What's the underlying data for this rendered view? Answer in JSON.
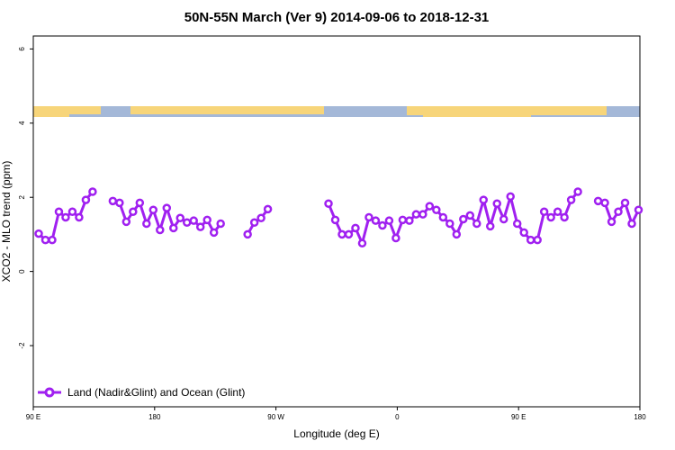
{
  "chart_data": {
    "type": "line",
    "title": "50N-55N March (Ver 9)   2014-09-06 to 2018-12-31",
    "xlabel": "Longitude (deg E)",
    "ylabel": "XCO2 - MLO trend (ppm)",
    "xlim": [
      90,
      540
    ],
    "ylim": [
      -3.65,
      6.35
    ],
    "xticks": [
      {
        "value": 90,
        "label": "90 E"
      },
      180,
      {
        "value": 270,
        "label": "90 W"
      },
      {
        "value": 360,
        "label": "0"
      },
      {
        "value": 450,
        "label": "90 E"
      },
      {
        "value": 540,
        "label": "180"
      }
    ],
    "yticks": [
      -2,
      0,
      2,
      4,
      6
    ],
    "legend": "bottom-left",
    "x": [
      94,
      99,
      104,
      109,
      114,
      119,
      124,
      129,
      134,
      139,
      144,
      149,
      154,
      159,
      164,
      169,
      174,
      179,
      184,
      189,
      194,
      199,
      204,
      209,
      214,
      219,
      224,
      229,
      234,
      239,
      244,
      249,
      254,
      259,
      264,
      269,
      274,
      279,
      284,
      289,
      294,
      299,
      304,
      309,
      314,
      319,
      324,
      329,
      334,
      339,
      344,
      349,
      354,
      359,
      364,
      369,
      374,
      379,
      384,
      389,
      394,
      399,
      404,
      409,
      414,
      419,
      424,
      429,
      434,
      439,
      444,
      449,
      454,
      459,
      464,
      469,
      474,
      479,
      484,
      489,
      494,
      499,
      504,
      509,
      514,
      519,
      524,
      529,
      534,
      539
    ],
    "series": [
      {
        "name": "Land (Nadir&Glint) and Ocean (Glint)",
        "color": "#a020f0",
        "values": [
          1.02,
          0.85,
          0.85,
          1.61,
          1.46,
          1.61,
          1.46,
          1.93,
          2.15,
          null,
          null,
          1.9,
          1.85,
          1.34,
          1.61,
          1.85,
          1.29,
          1.66,
          1.12,
          1.71,
          1.17,
          1.44,
          1.32,
          1.37,
          1.2,
          1.39,
          1.05,
          1.29,
          null,
          null,
          null,
          1.0,
          1.32,
          1.44,
          1.68,
          null,
          null,
          null,
          null,
          null,
          null,
          null,
          null,
          1.83,
          1.39,
          1.0,
          1.0,
          1.17,
          0.76,
          1.46,
          1.37,
          1.24,
          1.37,
          0.9,
          1.39,
          1.37,
          1.54,
          1.54,
          1.76,
          1.66,
          1.46,
          1.29,
          1.0,
          1.41,
          1.51,
          1.29,
          1.93,
          1.22,
          1.83,
          1.41,
          2.02,
          1.29,
          1.05,
          0.85,
          0.85,
          1.61,
          1.46,
          1.61,
          1.46,
          1.93,
          2.15,
          null,
          null,
          1.9,
          1.85,
          1.34,
          1.61,
          1.85,
          1.29,
          1.66
        ]
      }
    ]
  }
}
